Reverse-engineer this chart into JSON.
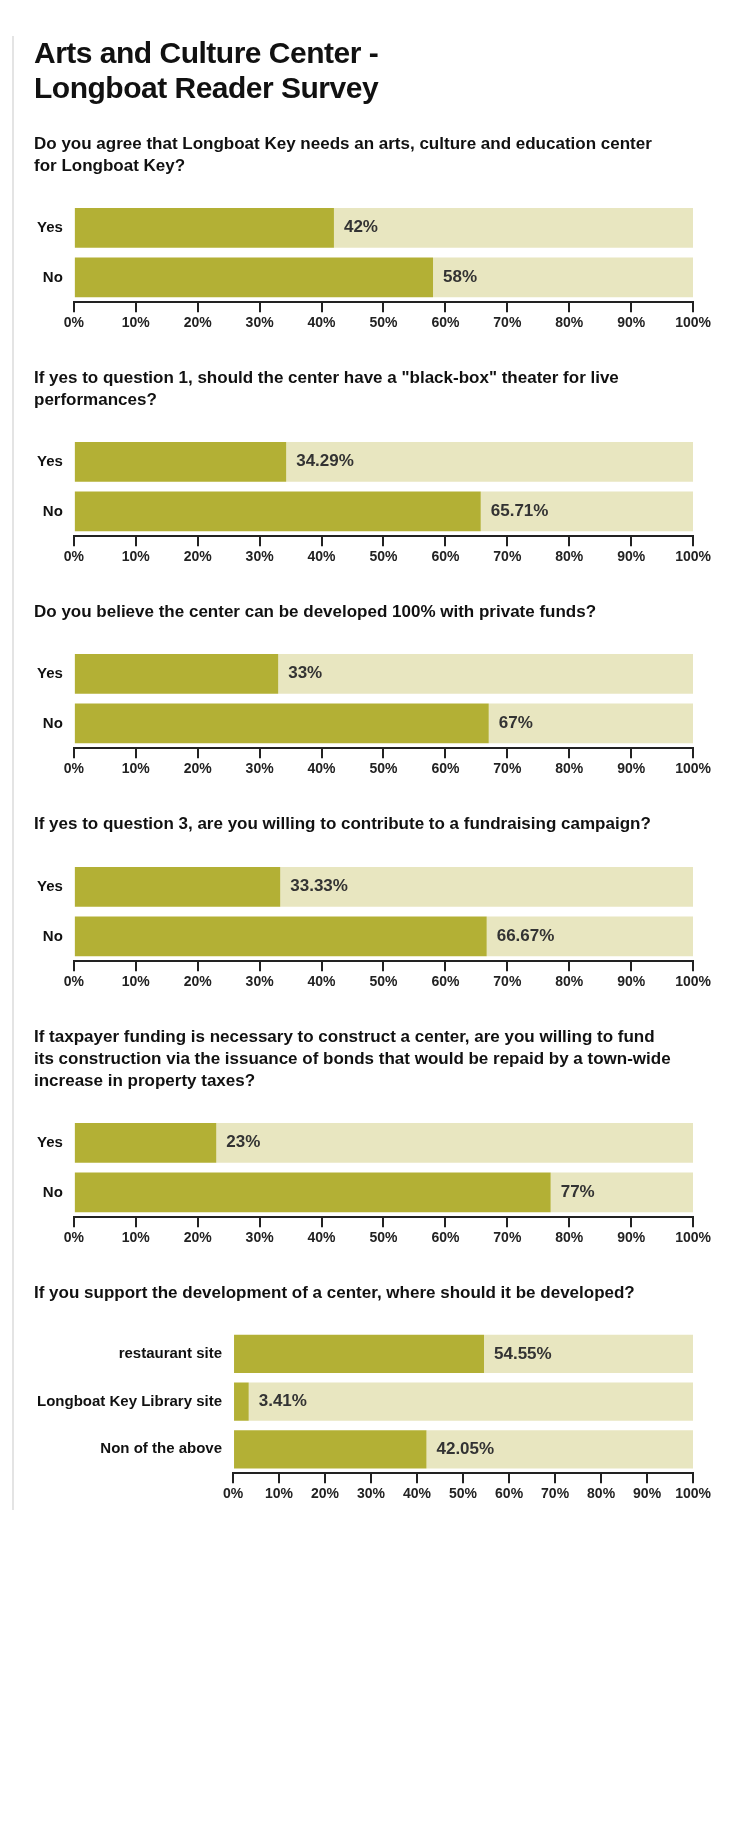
{
  "chart_data": [
    {
      "type": "bar",
      "orientation": "horizontal",
      "stacked": true,
      "title": "Arts and Culture Center - Longboat Reader Survey",
      "subtitle": "Do you agree that Longboat Key needs an arts, culture and education center for Longboat Key?",
      "categories": [
        "Yes",
        "No"
      ],
      "series": [
        {
          "color": "#b3b035",
          "values": [
            42,
            58
          ],
          "value_labels": [
            "42%",
            "58%"
          ]
        },
        {
          "color": "#e8e6c0",
          "values": [
            58,
            42
          ]
        }
      ],
      "xlim": [
        0,
        100
      ],
      "xticks": [
        {
          "value": 0,
          "label": "0%"
        },
        {
          "value": 10,
          "label": "10%"
        },
        {
          "value": 20,
          "label": "20%"
        },
        {
          "value": 30,
          "label": "30%"
        },
        {
          "value": 40,
          "label": "40%"
        },
        {
          "value": 50,
          "label": "50%"
        },
        {
          "value": 60,
          "label": "60%"
        },
        {
          "value": 70,
          "label": "70%"
        },
        {
          "value": 80,
          "label": "80%"
        },
        {
          "value": 90,
          "label": "90%"
        },
        {
          "value": 100,
          "label": "100%"
        }
      ]
    },
    {
      "type": "bar",
      "orientation": "horizontal",
      "stacked": true,
      "subtitle": "If yes to question 1, should the center have a \"black-box\" theater for live performances?",
      "categories": [
        "Yes",
        "No"
      ],
      "series": [
        {
          "color": "#b3b035",
          "values": [
            34.29,
            65.71
          ],
          "value_labels": [
            "34.29%",
            "65.71%"
          ]
        },
        {
          "color": "#e8e6c0",
          "values": [
            65.71,
            34.29
          ]
        }
      ],
      "xlim": [
        0,
        100
      ],
      "xticks": [
        {
          "value": 0,
          "label": "0%"
        },
        {
          "value": 10,
          "label": "10%"
        },
        {
          "value": 20,
          "label": "20%"
        },
        {
          "value": 30,
          "label": "30%"
        },
        {
          "value": 40,
          "label": "40%"
        },
        {
          "value": 50,
          "label": "50%"
        },
        {
          "value": 60,
          "label": "60%"
        },
        {
          "value": 70,
          "label": "70%"
        },
        {
          "value": 80,
          "label": "80%"
        },
        {
          "value": 90,
          "label": "90%"
        },
        {
          "value": 100,
          "label": "100%"
        }
      ]
    },
    {
      "type": "bar",
      "orientation": "horizontal",
      "stacked": true,
      "subtitle": "Do you believe the center can be developed 100% with private funds?",
      "categories": [
        "Yes",
        "No"
      ],
      "series": [
        {
          "color": "#b3b035",
          "values": [
            33,
            67
          ],
          "value_labels": [
            "33%",
            "67%"
          ]
        },
        {
          "color": "#e8e6c0",
          "values": [
            67,
            33
          ]
        }
      ],
      "xlim": [
        0,
        100
      ],
      "xticks": [
        {
          "value": 0,
          "label": "0%"
        },
        {
          "value": 10,
          "label": "10%"
        },
        {
          "value": 20,
          "label": "20%"
        },
        {
          "value": 30,
          "label": "30%"
        },
        {
          "value": 40,
          "label": "40%"
        },
        {
          "value": 50,
          "label": "50%"
        },
        {
          "value": 60,
          "label": "60%"
        },
        {
          "value": 70,
          "label": "70%"
        },
        {
          "value": 80,
          "label": "80%"
        },
        {
          "value": 90,
          "label": "90%"
        },
        {
          "value": 100,
          "label": "100%"
        }
      ]
    },
    {
      "type": "bar",
      "orientation": "horizontal",
      "stacked": true,
      "subtitle": "If yes to question 3, are you willing to contribute to a fundraising campaign?",
      "categories": [
        "Yes",
        "No"
      ],
      "series": [
        {
          "color": "#b3b035",
          "values": [
            33.33,
            66.67
          ],
          "value_labels": [
            "33.33%",
            "66.67%"
          ]
        },
        {
          "color": "#e8e6c0",
          "values": [
            66.67,
            33.33
          ]
        }
      ],
      "xlim": [
        0,
        100
      ],
      "xticks": [
        {
          "value": 0,
          "label": "0%"
        },
        {
          "value": 10,
          "label": "10%"
        },
        {
          "value": 20,
          "label": "20%"
        },
        {
          "value": 30,
          "label": "30%"
        },
        {
          "value": 40,
          "label": "40%"
        },
        {
          "value": 50,
          "label": "50%"
        },
        {
          "value": 60,
          "label": "60%"
        },
        {
          "value": 70,
          "label": "70%"
        },
        {
          "value": 80,
          "label": "80%"
        },
        {
          "value": 90,
          "label": "90%"
        },
        {
          "value": 100,
          "label": "100%"
        }
      ]
    },
    {
      "type": "bar",
      "orientation": "horizontal",
      "stacked": true,
      "subtitle": "If taxpayer funding is necessary to construct a center, are you willing to fund its construction via the issuance of bonds that would be repaid by a town-wide increase in property taxes?",
      "categories": [
        "Yes",
        "No"
      ],
      "series": [
        {
          "color": "#b3b035",
          "values": [
            23,
            77
          ],
          "value_labels": [
            "23%",
            "77%"
          ]
        },
        {
          "color": "#e8e6c0",
          "values": [
            77,
            23
          ]
        }
      ],
      "xlim": [
        0,
        100
      ],
      "xticks": [
        {
          "value": 0,
          "label": "0%"
        },
        {
          "value": 10,
          "label": "10%"
        },
        {
          "value": 20,
          "label": "20%"
        },
        {
          "value": 30,
          "label": "30%"
        },
        {
          "value": 40,
          "label": "40%"
        },
        {
          "value": 50,
          "label": "50%"
        },
        {
          "value": 60,
          "label": "60%"
        },
        {
          "value": 70,
          "label": "70%"
        },
        {
          "value": 80,
          "label": "80%"
        },
        {
          "value": 90,
          "label": "90%"
        },
        {
          "value": 100,
          "label": "100%"
        }
      ]
    },
    {
      "type": "bar",
      "orientation": "horizontal",
      "stacked": true,
      "subtitle": "If you support the development of a center, where should it be developed?",
      "categories": [
        "restaurant site",
        "Longboat Key Library site",
        "Non of the above"
      ],
      "series": [
        {
          "color": "#b3b035",
          "values": [
            54.55,
            3.41,
            42.05
          ],
          "value_labels": [
            "54.55%",
            "3.41%",
            "42.05%"
          ]
        },
        {
          "color": "#e8e6c0",
          "values": [
            45.45,
            96.59,
            57.95
          ]
        }
      ],
      "xlim": [
        0,
        100
      ],
      "xticks": [
        {
          "value": 0,
          "label": "0%"
        },
        {
          "value": 10,
          "label": "10%"
        },
        {
          "value": 20,
          "label": "20%"
        },
        {
          "value": 30,
          "label": "30%"
        },
        {
          "value": 40,
          "label": "40%"
        },
        {
          "value": 50,
          "label": "50%"
        },
        {
          "value": 60,
          "label": "60%"
        },
        {
          "value": 70,
          "label": "70%"
        },
        {
          "value": 80,
          "label": "80%"
        },
        {
          "value": 90,
          "label": "90%"
        },
        {
          "value": 100,
          "label": "100%"
        }
      ]
    }
  ]
}
